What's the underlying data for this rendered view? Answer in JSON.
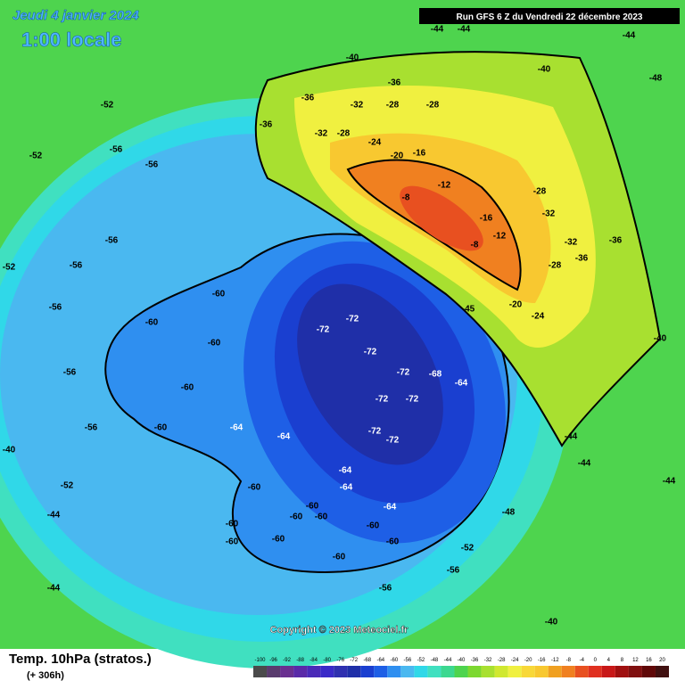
{
  "header": {
    "date": "Jeudi 4 janvier 2024",
    "time": "1:00 locale"
  },
  "run": "Run GFS 6 Z du Vendredi 22 décembre 2023",
  "footer": {
    "title": "Temp. 10hPa (stratos.)",
    "lead": "(+ 306h)"
  },
  "copyright": "Copyright © 2023 Meteociel.fr",
  "legend": {
    "ticks": [
      -100,
      -96,
      -92,
      -88,
      -84,
      -80,
      -76,
      -72,
      -68,
      -64,
      -60,
      -56,
      -52,
      -48,
      -44,
      -40,
      -36,
      -32,
      -28,
      -24,
      -20,
      -16,
      -12,
      -8,
      -4,
      0,
      4,
      8,
      12,
      16,
      20
    ],
    "colors": [
      "#4b4b4b",
      "#5a3c6e",
      "#6a3090",
      "#5a2aa8",
      "#4a2ab8",
      "#3a2ac8",
      "#2f30b0",
      "#1f2fa8",
      "#1a3fd0",
      "#1e5fe6",
      "#2f8ff0",
      "#4ab8f0",
      "#30d8e8",
      "#40e0c0",
      "#3cd890",
      "#4ed44e",
      "#7cd830",
      "#a8e030",
      "#d0e830",
      "#f0f040",
      "#f8d838",
      "#f8c830",
      "#f0a020",
      "#f08020",
      "#e85020",
      "#e03020",
      "#c81818",
      "#a01010",
      "#801010",
      "#600808",
      "#401010"
    ]
  },
  "contour_labels": [
    -44,
    -44,
    -40,
    -40,
    -44,
    -48,
    -36,
    -36,
    -36,
    -32,
    -32,
    -28,
    -28,
    -24,
    -28,
    -20,
    -16,
    -12,
    -8,
    -8,
    -12,
    -16,
    -28,
    -32,
    -32,
    -36,
    -36,
    -28,
    -24,
    -20,
    -40,
    -45,
    -52,
    -52,
    -56,
    -56,
    -56,
    -56,
    -52,
    -56,
    -56,
    -60,
    -60,
    -60,
    -60,
    -60,
    -64,
    -72,
    -72,
    -72,
    -72,
    -68,
    -64,
    -72,
    -72,
    -72,
    -72,
    -64,
    -64,
    -64,
    -64,
    -60,
    -60,
    -60,
    -60,
    -60,
    -60,
    -60,
    -60,
    -60,
    -60,
    -56,
    -56,
    -52,
    -48,
    -44,
    -44,
    -44,
    -44,
    -40,
    -44,
    -40,
    -52,
    -56
  ]
}
